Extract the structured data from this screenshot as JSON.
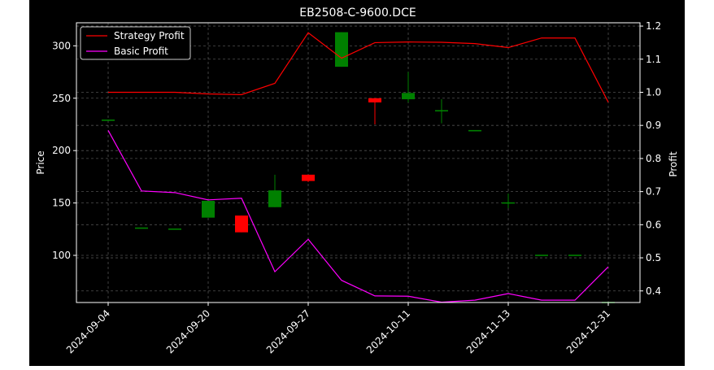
{
  "chart_data": {
    "type": "candlestick+line",
    "title": "EB2508-C-9600.DCE",
    "ylabel_left": "Price",
    "ylabel_right": "Profit",
    "ylim_left": [
      55,
      322
    ],
    "ylim_right": [
      0.365,
      1.21
    ],
    "yticks_left": [
      "100",
      "150",
      "200",
      "250",
      "300"
    ],
    "yticks_right": [
      "0.4",
      "0.5",
      "0.6",
      "0.7",
      "0.8",
      "0.9",
      "1.0",
      "1.1",
      "1.2"
    ],
    "x_tick_labels": [
      "2024-09-04",
      "2024-09-20",
      "2024-09-27",
      "2024-10-11",
      "2024-11-13",
      "2024-12-31"
    ],
    "x_tick_positions": [
      0,
      3,
      6,
      9,
      12,
      15
    ],
    "grid": true,
    "legend_position": "upper left",
    "series": [
      {
        "name": "Strategy Profit",
        "color": "#ff0000",
        "values": [
          1.0,
          1.0,
          1.0,
          0.995,
          0.993,
          1.027,
          1.18,
          1.103,
          1.15,
          1.152,
          1.151,
          1.147,
          1.135,
          1.164,
          1.164,
          0.97
        ]
      },
      {
        "name": "Basic Profit",
        "color": "#ff00ff",
        "values": [
          0.885,
          0.702,
          0.697,
          0.675,
          0.68,
          0.458,
          0.556,
          0.432,
          0.385,
          0.384,
          0.366,
          0.372,
          0.392,
          0.372,
          0.372,
          0.473
        ]
      }
    ],
    "candles": [
      {
        "x": 0,
        "open": 229,
        "high": 229,
        "low": 229,
        "close": 229
      },
      {
        "x": 1,
        "open": 126,
        "high": 126,
        "low": 126,
        "close": 126
      },
      {
        "x": 2,
        "open": 125,
        "high": 125,
        "low": 125,
        "close": 125
      },
      {
        "x": 3,
        "open": 136,
        "high": 152,
        "low": 136,
        "close": 152
      },
      {
        "x": 4,
        "open": 138,
        "high": 138,
        "low": 122,
        "close": 122
      },
      {
        "x": 5,
        "open": 146,
        "high": 177,
        "low": 146,
        "close": 162
      },
      {
        "x": 6,
        "open": 177,
        "high": 177,
        "low": 170,
        "close": 171
      },
      {
        "x": 7,
        "open": 280,
        "high": 313,
        "low": 280,
        "close": 313
      },
      {
        "x": 8,
        "open": 250,
        "high": 250,
        "low": 225,
        "close": 246
      },
      {
        "x": 9,
        "open": 249,
        "high": 275,
        "low": 246,
        "close": 255
      },
      {
        "x": 10,
        "open": 238,
        "high": 249,
        "low": 226,
        "close": 238
      },
      {
        "x": 11,
        "open": 219,
        "high": 219,
        "low": 219,
        "close": 219
      },
      {
        "x": 12,
        "open": 150,
        "high": 159,
        "low": 145,
        "close": 150
      },
      {
        "x": 13,
        "open": 100,
        "high": 100,
        "low": 100,
        "close": 100
      },
      {
        "x": 14,
        "open": 100,
        "high": 100,
        "low": 100,
        "close": 100
      },
      {
        "x": 15,
        "open": 55,
        "high": 55,
        "low": 55,
        "close": 55
      }
    ],
    "up_color": "#008000",
    "down_color": "#ff0000"
  }
}
